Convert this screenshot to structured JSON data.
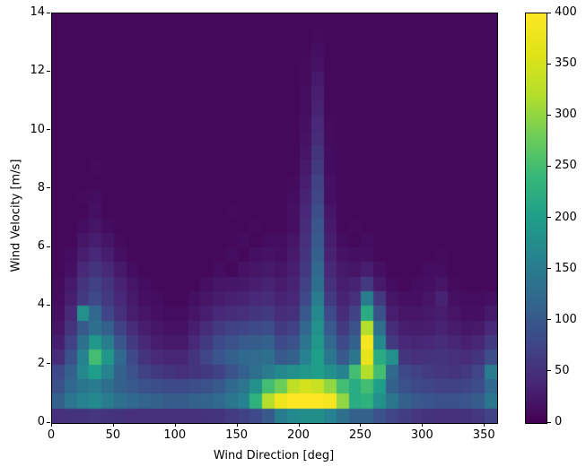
{
  "figure": {
    "background": "#ffffff",
    "text_color": "#000000"
  },
  "chart_data": {
    "type": "heatmap",
    "title": "",
    "xlabel": "Wind Direction [deg]",
    "ylabel": "Wind Velocity [m/s]",
    "xlim": [
      0,
      360
    ],
    "ylim": [
      0,
      14
    ],
    "x_ticks": [
      0,
      50,
      100,
      150,
      200,
      250,
      300,
      350
    ],
    "y_ticks": [
      0,
      2,
      4,
      6,
      8,
      10,
      12,
      14
    ],
    "colormap": "viridis",
    "colorbar_range": [
      0,
      400
    ],
    "colorbar_ticks": [
      0,
      50,
      100,
      150,
      200,
      250,
      300,
      350,
      400
    ],
    "grid": {
      "cols": 36,
      "rows": 28,
      "x_bin_deg": 10,
      "y_bin_ms": 0.5,
      "row_order": "top_to_bottom"
    },
    "values": [
      [
        8,
        8,
        8,
        8,
        8,
        8,
        8,
        8,
        8,
        8,
        8,
        8,
        8,
        8,
        8,
        8,
        8,
        8,
        8,
        8,
        8,
        8,
        8,
        8,
        8,
        8,
        8,
        8,
        8,
        8,
        8,
        8,
        8,
        8,
        8,
        8
      ],
      [
        8,
        8,
        8,
        8,
        8,
        8,
        8,
        8,
        8,
        8,
        8,
        8,
        8,
        8,
        8,
        8,
        8,
        8,
        8,
        8,
        8,
        10,
        8,
        8,
        8,
        8,
        8,
        8,
        8,
        8,
        8,
        8,
        8,
        8,
        8,
        8
      ],
      [
        8,
        8,
        8,
        8,
        8,
        8,
        8,
        8,
        8,
        8,
        8,
        8,
        8,
        8,
        8,
        8,
        8,
        8,
        8,
        8,
        8,
        14,
        8,
        8,
        8,
        8,
        8,
        8,
        8,
        8,
        8,
        8,
        8,
        8,
        8,
        8
      ],
      [
        8,
        8,
        8,
        8,
        8,
        8,
        8,
        8,
        8,
        8,
        8,
        8,
        8,
        8,
        8,
        8,
        8,
        8,
        8,
        8,
        10,
        18,
        8,
        8,
        8,
        8,
        8,
        8,
        8,
        8,
        8,
        8,
        8,
        8,
        8,
        8
      ],
      [
        8,
        8,
        8,
        8,
        8,
        8,
        8,
        8,
        8,
        8,
        8,
        8,
        8,
        8,
        8,
        8,
        8,
        8,
        8,
        8,
        10,
        25,
        8,
        8,
        8,
        8,
        8,
        8,
        8,
        8,
        8,
        8,
        8,
        8,
        8,
        8
      ],
      [
        8,
        8,
        8,
        8,
        8,
        8,
        8,
        8,
        8,
        8,
        8,
        8,
        8,
        8,
        8,
        8,
        8,
        8,
        8,
        8,
        12,
        30,
        8,
        8,
        8,
        8,
        8,
        8,
        8,
        8,
        8,
        8,
        8,
        8,
        8,
        8
      ],
      [
        8,
        8,
        8,
        8,
        8,
        8,
        8,
        8,
        8,
        8,
        8,
        8,
        8,
        8,
        8,
        8,
        8,
        8,
        8,
        8,
        12,
        35,
        8,
        8,
        8,
        8,
        8,
        8,
        8,
        8,
        8,
        8,
        8,
        8,
        8,
        8
      ],
      [
        8,
        8,
        8,
        8,
        8,
        8,
        8,
        8,
        8,
        8,
        8,
        8,
        8,
        8,
        8,
        8,
        8,
        8,
        8,
        8,
        15,
        40,
        10,
        8,
        8,
        8,
        8,
        8,
        8,
        8,
        8,
        8,
        8,
        8,
        8,
        8
      ],
      [
        8,
        8,
        8,
        8,
        8,
        8,
        8,
        8,
        8,
        8,
        8,
        8,
        8,
        8,
        8,
        8,
        8,
        8,
        8,
        8,
        18,
        45,
        10,
        8,
        8,
        8,
        8,
        8,
        8,
        8,
        8,
        8,
        8,
        8,
        8,
        8
      ],
      [
        8,
        8,
        8,
        8,
        8,
        8,
        8,
        8,
        8,
        8,
        8,
        8,
        8,
        8,
        8,
        8,
        8,
        8,
        8,
        8,
        20,
        55,
        12,
        8,
        8,
        8,
        8,
        8,
        8,
        8,
        8,
        8,
        8,
        8,
        8,
        8
      ],
      [
        8,
        8,
        8,
        10,
        8,
        8,
        8,
        8,
        8,
        8,
        8,
        8,
        8,
        8,
        8,
        8,
        8,
        8,
        8,
        8,
        25,
        60,
        12,
        8,
        8,
        8,
        8,
        8,
        8,
        8,
        8,
        8,
        8,
        8,
        8,
        8
      ],
      [
        8,
        8,
        8,
        8,
        8,
        8,
        8,
        8,
        8,
        8,
        8,
        8,
        8,
        8,
        8,
        8,
        8,
        8,
        8,
        10,
        30,
        70,
        15,
        8,
        8,
        8,
        8,
        8,
        8,
        8,
        8,
        8,
        8,
        8,
        8,
        8
      ],
      [
        8,
        8,
        10,
        12,
        8,
        8,
        8,
        8,
        8,
        8,
        8,
        8,
        8,
        8,
        8,
        8,
        8,
        8,
        8,
        12,
        35,
        75,
        15,
        8,
        8,
        8,
        8,
        8,
        8,
        8,
        8,
        8,
        8,
        8,
        8,
        8
      ],
      [
        8,
        8,
        8,
        15,
        8,
        8,
        8,
        8,
        8,
        8,
        8,
        8,
        8,
        8,
        10,
        8,
        8,
        8,
        8,
        15,
        40,
        85,
        20,
        8,
        8,
        8,
        8,
        8,
        8,
        8,
        8,
        8,
        8,
        8,
        8,
        8
      ],
      [
        8,
        8,
        12,
        20,
        12,
        8,
        8,
        8,
        8,
        8,
        8,
        8,
        8,
        8,
        8,
        8,
        10,
        8,
        8,
        15,
        45,
        95,
        25,
        8,
        10,
        8,
        8,
        8,
        8,
        8,
        8,
        8,
        8,
        8,
        8,
        8
      ],
      [
        8,
        8,
        20,
        30,
        20,
        10,
        8,
        8,
        8,
        8,
        8,
        8,
        8,
        8,
        8,
        12,
        8,
        12,
        12,
        20,
        50,
        100,
        30,
        12,
        8,
        12,
        8,
        8,
        8,
        8,
        8,
        8,
        8,
        8,
        8,
        8
      ],
      [
        8,
        12,
        30,
        40,
        30,
        15,
        8,
        8,
        8,
        8,
        8,
        8,
        8,
        8,
        12,
        8,
        15,
        18,
        15,
        25,
        55,
        110,
        35,
        18,
        15,
        15,
        8,
        8,
        8,
        8,
        8,
        10,
        8,
        8,
        8,
        8
      ],
      [
        8,
        15,
        40,
        55,
        40,
        25,
        12,
        8,
        8,
        8,
        8,
        8,
        8,
        12,
        8,
        18,
        20,
        25,
        20,
        30,
        60,
        120,
        40,
        25,
        20,
        30,
        15,
        8,
        8,
        8,
        12,
        12,
        8,
        8,
        8,
        8
      ],
      [
        10,
        25,
        55,
        70,
        55,
        35,
        20,
        12,
        8,
        8,
        8,
        8,
        15,
        20,
        22,
        25,
        30,
        35,
        28,
        35,
        70,
        130,
        50,
        30,
        35,
        60,
        25,
        12,
        8,
        12,
        15,
        20,
        10,
        8,
        8,
        8
      ],
      [
        12,
        30,
        60,
        80,
        60,
        40,
        25,
        15,
        12,
        8,
        8,
        15,
        20,
        28,
        32,
        35,
        40,
        45,
        35,
        40,
        80,
        150,
        60,
        35,
        50,
        150,
        60,
        20,
        15,
        15,
        20,
        35,
        15,
        12,
        12,
        15
      ],
      [
        15,
        40,
        180,
        120,
        75,
        50,
        30,
        20,
        15,
        12,
        12,
        20,
        30,
        40,
        45,
        50,
        55,
        60,
        45,
        50,
        100,
        170,
        80,
        45,
        70,
        220,
        90,
        30,
        20,
        20,
        25,
        30,
        20,
        15,
        15,
        25
      ],
      [
        20,
        55,
        100,
        130,
        110,
        70,
        45,
        30,
        22,
        18,
        18,
        30,
        45,
        60,
        70,
        75,
        80,
        85,
        60,
        70,
        120,
        180,
        100,
        60,
        90,
        320,
        130,
        45,
        30,
        28,
        30,
        35,
        28,
        22,
        25,
        40
      ],
      [
        30,
        70,
        130,
        190,
        150,
        95,
        60,
        40,
        30,
        25,
        25,
        40,
        60,
        80,
        90,
        100,
        105,
        110,
        80,
        90,
        140,
        190,
        120,
        80,
        110,
        390,
        170,
        60,
        40,
        38,
        40,
        45,
        38,
        32,
        38,
        60
      ],
      [
        45,
        90,
        160,
        250,
        190,
        120,
        80,
        55,
        42,
        38,
        38,
        55,
        75,
        95,
        110,
        120,
        125,
        130,
        100,
        110,
        160,
        200,
        140,
        100,
        140,
        370,
        220,
        180,
        55,
        50,
        52,
        55,
        50,
        45,
        55,
        85
      ],
      [
        80,
        110,
        170,
        200,
        160,
        110,
        90,
        70,
        60,
        55,
        50,
        55,
        60,
        70,
        90,
        110,
        130,
        150,
        170,
        180,
        190,
        200,
        180,
        160,
        250,
        320,
        250,
        120,
        80,
        70,
        62,
        58,
        55,
        60,
        75,
        150
      ],
      [
        90,
        120,
        140,
        150,
        130,
        110,
        100,
        90,
        85,
        80,
        80,
        85,
        90,
        100,
        120,
        140,
        180,
        250,
        280,
        330,
        350,
        340,
        300,
        250,
        220,
        250,
        200,
        110,
        90,
        80,
        75,
        70,
        70,
        75,
        85,
        120
      ],
      [
        110,
        140,
        160,
        170,
        150,
        130,
        120,
        115,
        110,
        105,
        105,
        110,
        115,
        125,
        140,
        160,
        230,
        320,
        380,
        400,
        400,
        400,
        390,
        300,
        220,
        230,
        180,
        140,
        110,
        100,
        95,
        90,
        90,
        95,
        105,
        140
      ],
      [
        50,
        52,
        55,
        58,
        55,
        52,
        50,
        48,
        48,
        48,
        48,
        50,
        52,
        55,
        62,
        70,
        80,
        100,
        150,
        170,
        175,
        175,
        160,
        130,
        110,
        110,
        90,
        75,
        65,
        58,
        52,
        50,
        50,
        52,
        58,
        70
      ]
    ],
    "viridis_stops": [
      [
        0.0,
        "#440154"
      ],
      [
        0.1,
        "#482878"
      ],
      [
        0.2,
        "#3e4989"
      ],
      [
        0.3,
        "#31688e"
      ],
      [
        0.4,
        "#26828e"
      ],
      [
        0.5,
        "#1f9e89"
      ],
      [
        0.6,
        "#35b779"
      ],
      [
        0.7,
        "#6dcd59"
      ],
      [
        0.8,
        "#b4de2c"
      ],
      [
        0.9,
        "#dfe318"
      ],
      [
        1.0,
        "#fde725"
      ]
    ],
    "legend_position": "right-colorbar",
    "grid_lines": false
  }
}
